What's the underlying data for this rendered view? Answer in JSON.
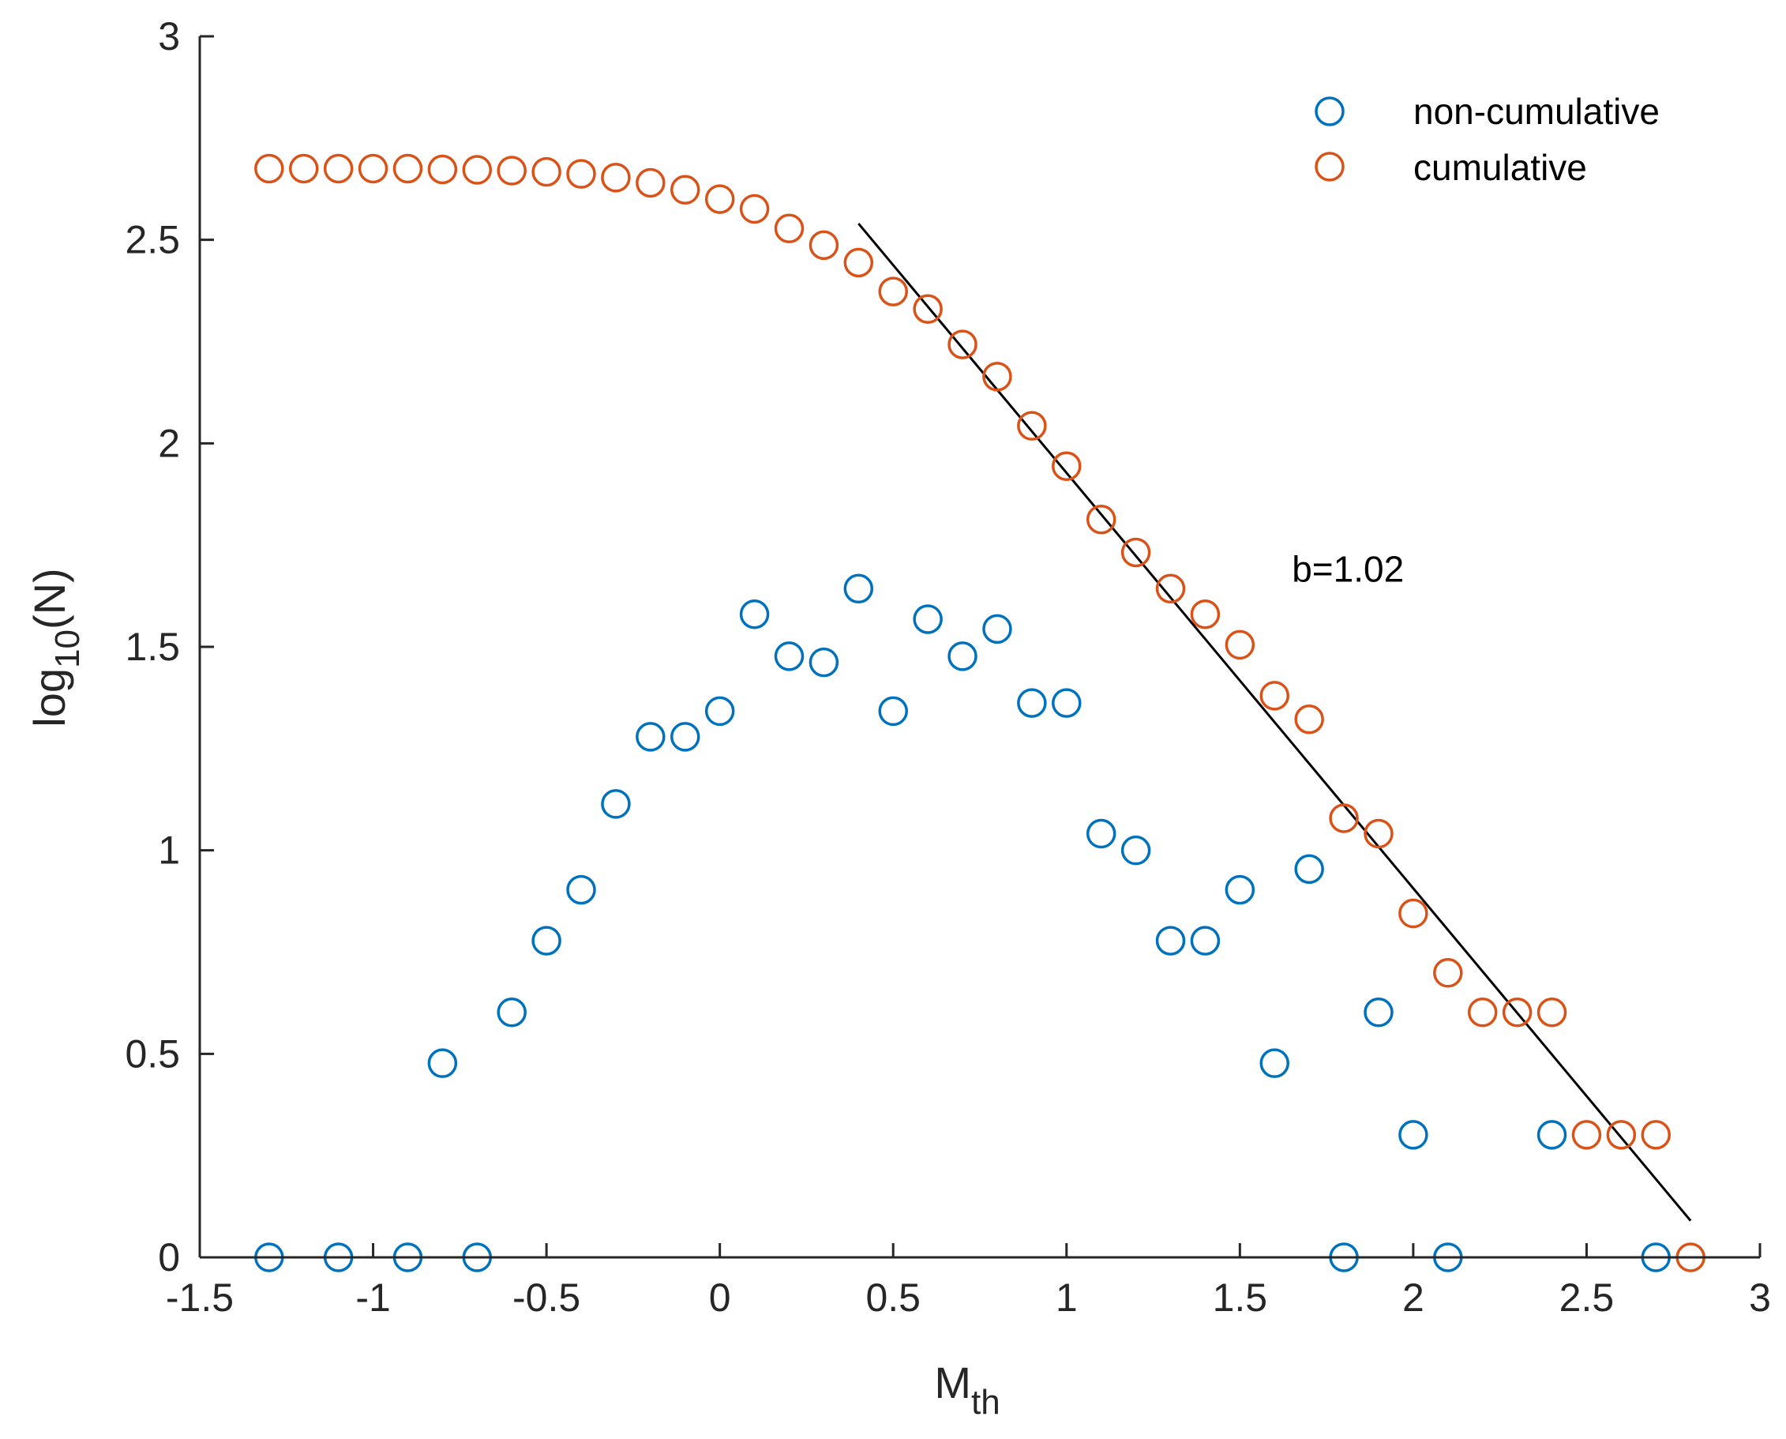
{
  "chart_data": {
    "type": "scatter",
    "title": "",
    "xlabel": {
      "base": "M",
      "sub": "th"
    },
    "ylabel": {
      "prefix": "log",
      "sub": "10",
      "suffix": "(N)"
    },
    "xlim": [
      -1.5,
      3
    ],
    "ylim": [
      0,
      3
    ],
    "xticks": [
      -1.5,
      -1,
      -0.5,
      0,
      0.5,
      1,
      1.5,
      2,
      2.5,
      3
    ],
    "yticks": [
      0,
      0.5,
      1,
      1.5,
      2,
      2.5,
      3
    ],
    "grid": false,
    "legend_position": "top-right",
    "series": [
      {
        "name": "non-cumulative",
        "color": "#0072BD",
        "marker": "circle-open",
        "points": [
          [
            -1.3,
            0
          ],
          [
            -1.1,
            0
          ],
          [
            -0.9,
            0
          ],
          [
            -0.8,
            0.477
          ],
          [
            -0.7,
            0
          ],
          [
            -0.6,
            0.602
          ],
          [
            -0.5,
            0.778
          ],
          [
            -0.4,
            0.903
          ],
          [
            -0.3,
            1.114
          ],
          [
            -0.2,
            1.279
          ],
          [
            -0.1,
            1.279
          ],
          [
            0.0,
            1.342
          ],
          [
            0.1,
            1.58
          ],
          [
            0.2,
            1.477
          ],
          [
            0.3,
            1.462
          ],
          [
            0.4,
            1.643
          ],
          [
            0.5,
            1.342
          ],
          [
            0.6,
            1.568
          ],
          [
            0.7,
            1.477
          ],
          [
            0.8,
            1.544
          ],
          [
            0.9,
            1.362
          ],
          [
            1.0,
            1.362
          ],
          [
            1.1,
            1.041
          ],
          [
            1.2,
            1.0
          ],
          [
            1.3,
            0.778
          ],
          [
            1.4,
            0.778
          ],
          [
            1.5,
            0.903
          ],
          [
            1.6,
            0.477
          ],
          [
            1.7,
            0.954
          ],
          [
            1.8,
            0
          ],
          [
            1.9,
            0.602
          ],
          [
            2.0,
            0.301
          ],
          [
            2.1,
            0
          ],
          [
            2.4,
            0.301
          ],
          [
            2.7,
            0
          ]
        ]
      },
      {
        "name": "cumulative",
        "color": "#D95319",
        "marker": "circle-open",
        "points": [
          [
            -1.3,
            2.675
          ],
          [
            -1.2,
            2.675
          ],
          [
            -1.1,
            2.675
          ],
          [
            -1.0,
            2.675
          ],
          [
            -0.9,
            2.675
          ],
          [
            -0.8,
            2.673
          ],
          [
            -0.7,
            2.672
          ],
          [
            -0.6,
            2.67
          ],
          [
            -0.5,
            2.667
          ],
          [
            -0.4,
            2.662
          ],
          [
            -0.3,
            2.653
          ],
          [
            -0.2,
            2.64
          ],
          [
            -0.1,
            2.623
          ],
          [
            0.0,
            2.6
          ],
          [
            0.1,
            2.576
          ],
          [
            0.2,
            2.528
          ],
          [
            0.3,
            2.487
          ],
          [
            0.4,
            2.444
          ],
          [
            0.5,
            2.373
          ],
          [
            0.6,
            2.33
          ],
          [
            0.7,
            2.243
          ],
          [
            0.8,
            2.164
          ],
          [
            0.9,
            2.043
          ],
          [
            1.0,
            1.944
          ],
          [
            1.1,
            1.813
          ],
          [
            1.2,
            1.732
          ],
          [
            1.3,
            1.643
          ],
          [
            1.4,
            1.58
          ],
          [
            1.5,
            1.505
          ],
          [
            1.6,
            1.38
          ],
          [
            1.7,
            1.322
          ],
          [
            1.8,
            1.079
          ],
          [
            1.9,
            1.041
          ],
          [
            2.0,
            0.845
          ],
          [
            2.1,
            0.699
          ],
          [
            2.2,
            0.602
          ],
          [
            2.3,
            0.602
          ],
          [
            2.4,
            0.602
          ],
          [
            2.5,
            0.301
          ],
          [
            2.6,
            0.301
          ],
          [
            2.7,
            0.301
          ],
          [
            2.8,
            0
          ]
        ]
      }
    ],
    "fit_line": {
      "label": "b=1.02",
      "color": "#000000",
      "x": [
        0.4,
        2.8
      ],
      "y": [
        2.54,
        0.09
      ]
    },
    "annotations": [
      {
        "text": "b=1.02",
        "x": 1.65,
        "y": 1.66
      }
    ]
  }
}
